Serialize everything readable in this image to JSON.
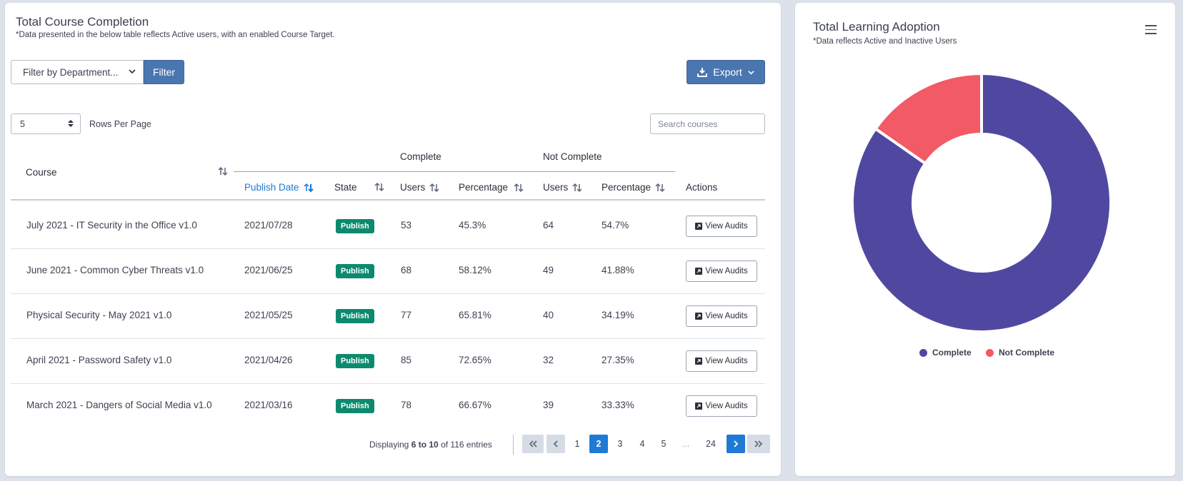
{
  "left": {
    "title": "Total Course Completion",
    "subtitle": "*Data presented in the below table reflects Active users, with an enabled Course Target.",
    "dept_filter": "Filter by Department...",
    "filter_label": "Filter",
    "export_label": "Export",
    "rows_value": "5",
    "rows_label": "Rows Per Page",
    "search_placeholder": "Search courses"
  },
  "table": {
    "group_complete": "Complete",
    "group_not_complete": "Not Complete",
    "h_course": "Course",
    "h_publish": "Publish Date",
    "h_state": "State",
    "h_users_c": "Users",
    "h_pct_c": "Percentage",
    "h_users_n": "Users",
    "h_pct_n": "Percentage",
    "h_actions": "Actions",
    "rows": [
      {
        "course": "July 2021 - IT Security in the Office v1.0",
        "date": "2021/07/28",
        "state": "Publish",
        "cu": "53",
        "cp": "45.3%",
        "nu": "64",
        "np": "54.7%",
        "action": "View Audits"
      },
      {
        "course": "June 2021 - Common Cyber Threats v1.0",
        "date": "2021/06/25",
        "state": "Publish",
        "cu": "68",
        "cp": "58.12%",
        "nu": "49",
        "np": "41.88%",
        "action": "View Audits"
      },
      {
        "course": "Physical Security - May 2021 v1.0",
        "date": "2021/05/25",
        "state": "Publish",
        "cu": "77",
        "cp": "65.81%",
        "nu": "40",
        "np": "34.19%",
        "action": "View Audits"
      },
      {
        "course": "April 2021 - Password Safety v1.0",
        "date": "2021/04/26",
        "state": "Publish",
        "cu": "85",
        "cp": "72.65%",
        "nu": "32",
        "np": "27.35%",
        "action": "View Audits"
      },
      {
        "course": "March 2021 - Dangers of Social Media v1.0",
        "date": "2021/03/16",
        "state": "Publish",
        "cu": "78",
        "cp": "66.67%",
        "nu": "39",
        "np": "33.33%",
        "action": "View Audits"
      }
    ]
  },
  "pagination": {
    "prefix": "Displaying",
    "range": "6 to 10",
    "mid": "of",
    "total": "116",
    "suffix": "entries",
    "pages": [
      "1",
      "2",
      "3",
      "4",
      "5",
      "...",
      "24"
    ],
    "current": "2"
  },
  "right": {
    "title": "Total Learning Adoption",
    "subtitle": "*Data reflects Active and Inactive Users",
    "legend_complete": "Complete",
    "legend_not_complete": "Not Complete"
  },
  "chart_data": {
    "type": "pie",
    "donut": true,
    "categories": [
      "Complete",
      "Not Complete"
    ],
    "values": [
      84.7,
      15.3
    ],
    "colors": [
      "#5048a0",
      "#f25a66"
    ],
    "legend_position": "bottom"
  },
  "colors": {
    "accent": "#1f7ad6",
    "button": "#4a76b0",
    "badge": "#0d8a6e",
    "complete": "#5048a0",
    "not_complete": "#f25a66"
  }
}
